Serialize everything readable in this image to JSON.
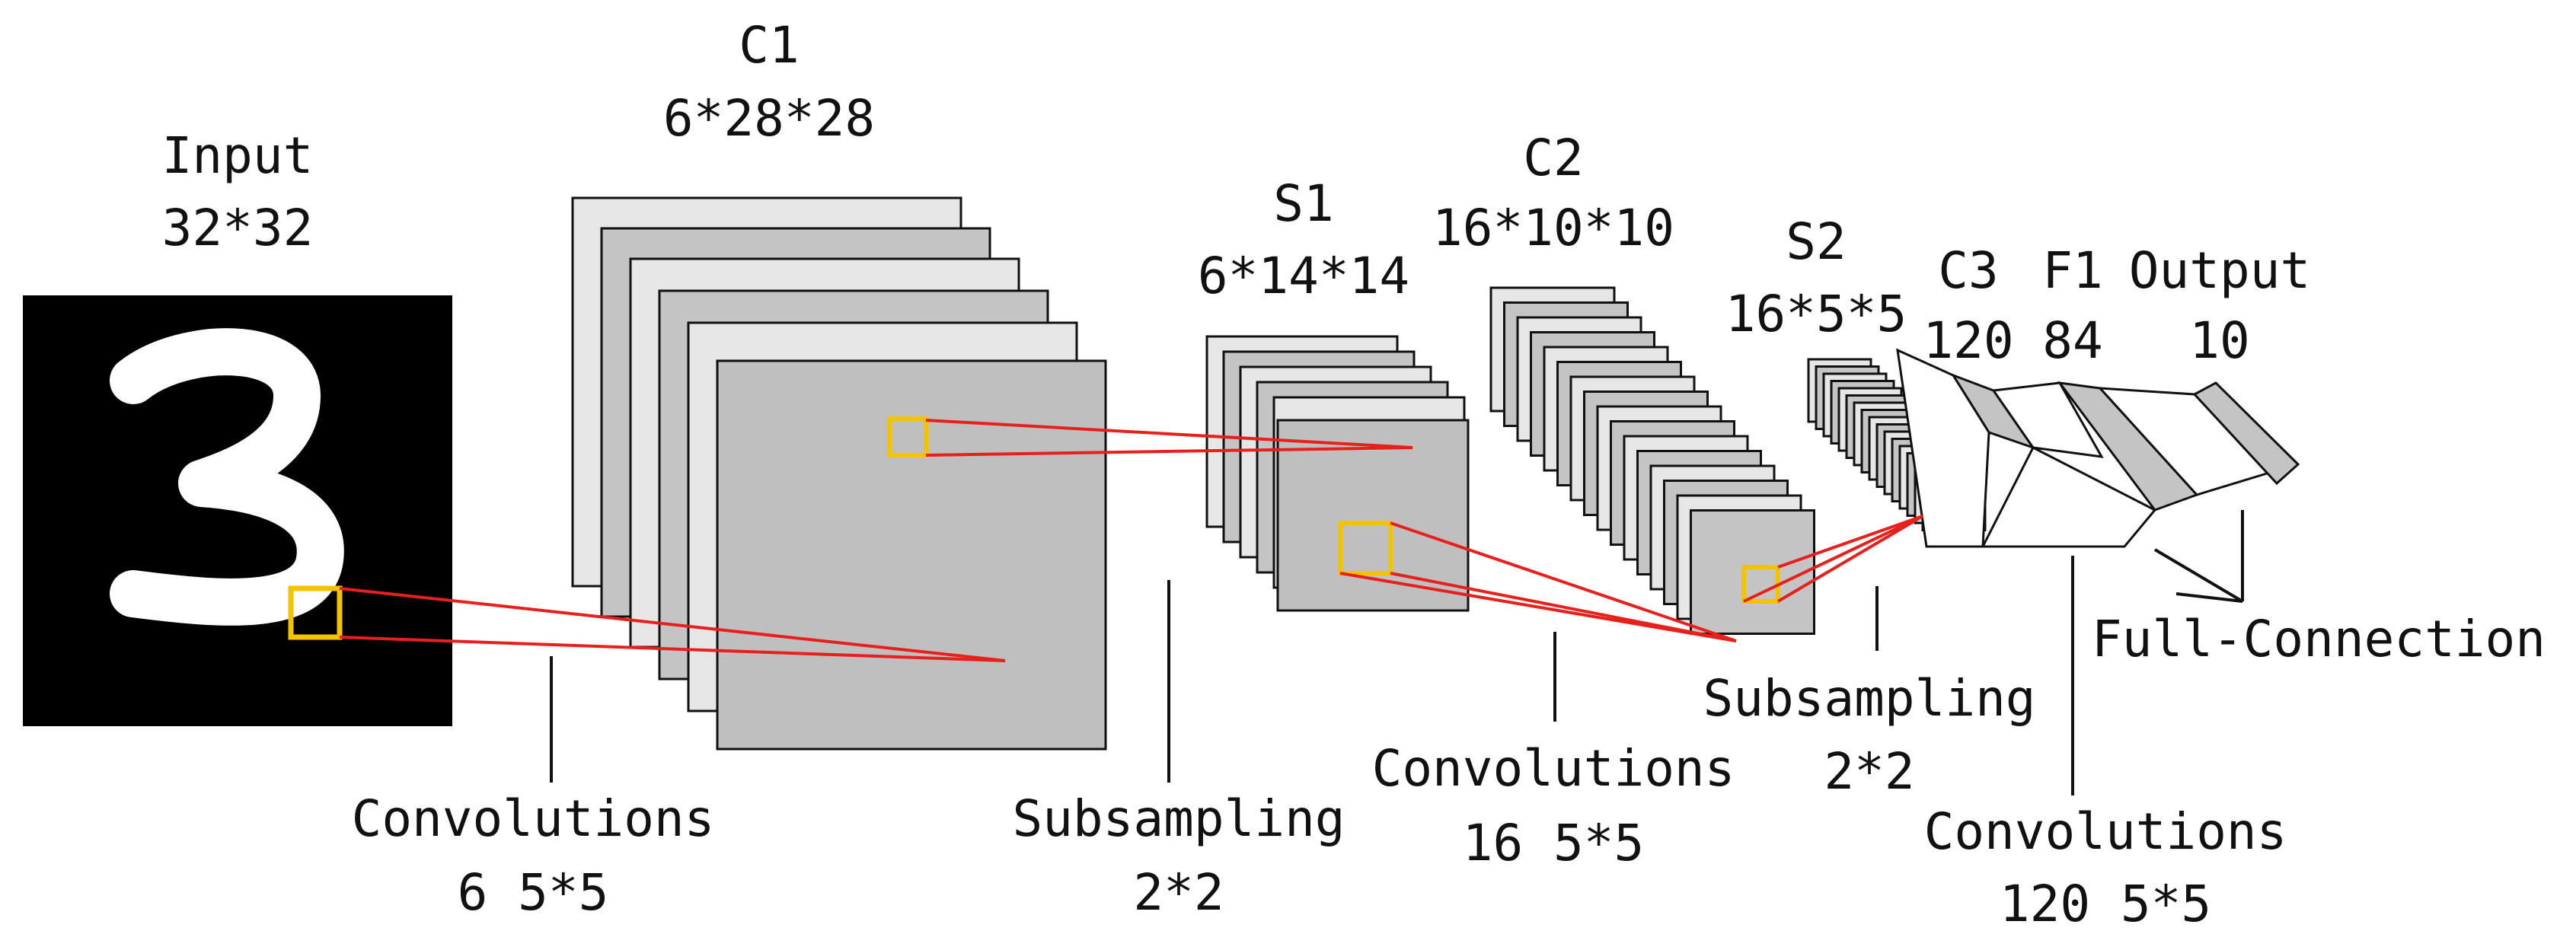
{
  "layers": {
    "input": {
      "name": "Input",
      "size": "32*32"
    },
    "c1": {
      "name": "C1",
      "size": "6*28*28"
    },
    "s1": {
      "name": "S1",
      "size": "6*14*14"
    },
    "c2": {
      "name": "C2",
      "size": "16*10*10"
    },
    "s2": {
      "name": "S2",
      "size": "16*5*5"
    },
    "c3": {
      "name": "C3",
      "size": "120"
    },
    "f1": {
      "name": "F1",
      "size": "84"
    },
    "output": {
      "name": "Output",
      "size": "10"
    }
  },
  "operations": {
    "conv1": {
      "name": "Convolutions",
      "param": "6 5*5"
    },
    "sub1": {
      "name": "Subsampling",
      "param": "2*2"
    },
    "conv2": {
      "name": "Convolutions",
      "param": "16 5*5"
    },
    "sub2": {
      "name": "Subsampling",
      "param": "2*2"
    },
    "conv3": {
      "name": "Convolutions",
      "param": "120 5*5"
    },
    "full": {
      "name": "Full-Connection"
    }
  },
  "input_image": {
    "digit": "3"
  },
  "colors": {
    "map_light": "#e6e6e6",
    "map_dark": "#c4c4c4",
    "connection_red": "#e8201c",
    "receptive_yellow": "#f2c400",
    "outline": "#111111"
  }
}
